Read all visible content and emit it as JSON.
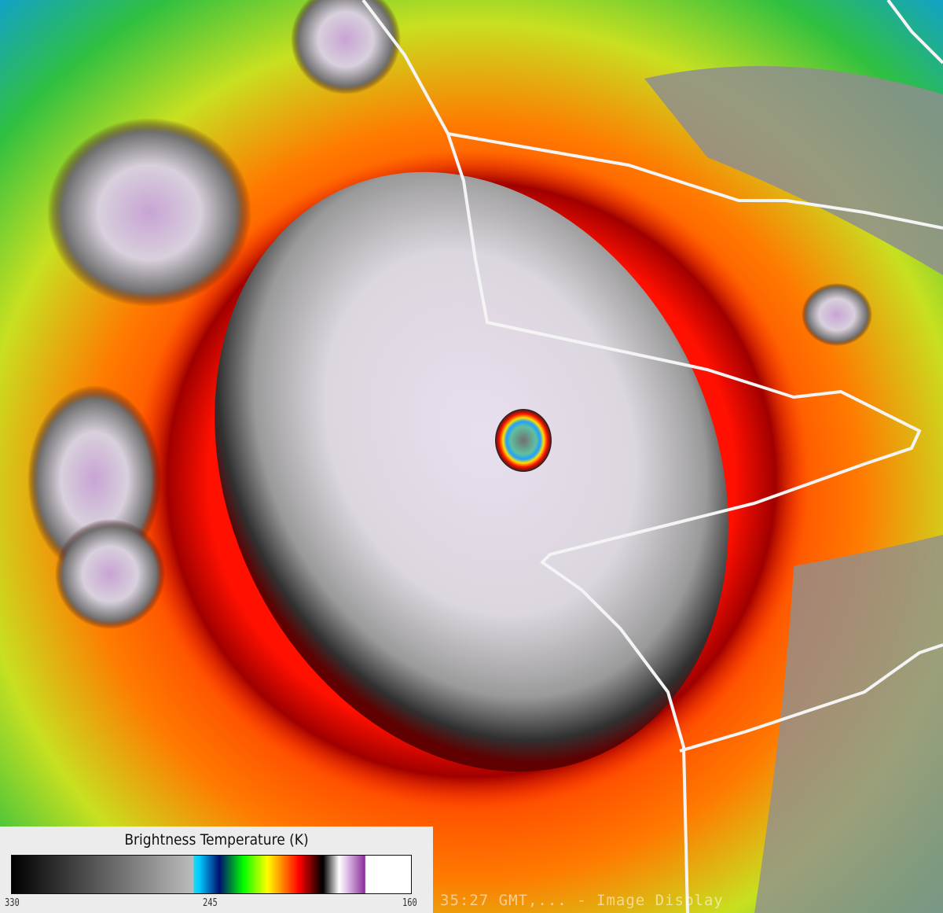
{
  "image": {
    "subject": "infrared satellite view of hurricane with visible eye",
    "colors": {
      "cold_tops": "#f0eef2",
      "overshoot": "#c8a0d8",
      "ring": "#ff1000",
      "mid": "#ffa000",
      "warm": "#60e020",
      "cool": "#10b0e0",
      "clear": "#8c8c8c",
      "borders": "#ffffff"
    }
  },
  "legend": {
    "title": "Brightness Temperature (K)",
    "ticks": [
      "330",
      "245",
      "160"
    ]
  },
  "overlay_text": "35:27 GMT,... - Image Display"
}
